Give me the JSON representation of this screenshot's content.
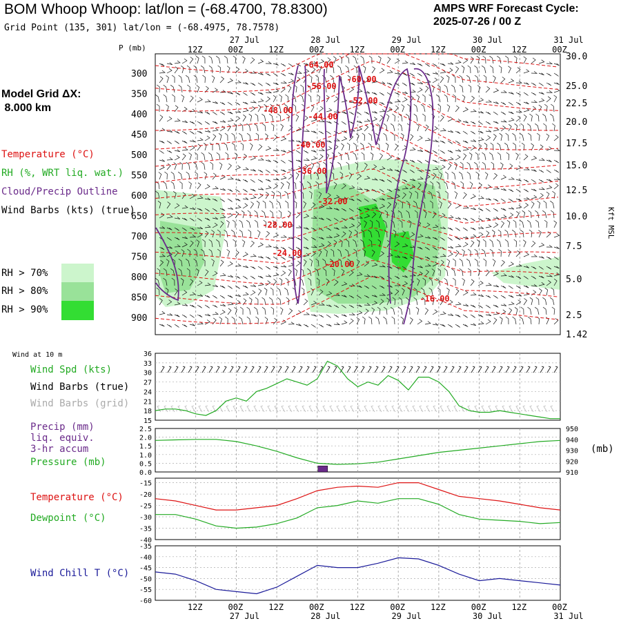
{
  "header": {
    "title": "BOM Whoop Whoop:  lat/lon = (-68.4700, 78.8300)",
    "subtitle": "Grid Point (135, 301) lat/lon = (-68.4975, 78.7578)",
    "cycle_line1": "AMPS WRF Forecast Cycle:",
    "cycle_line2": "2025-07-26 / 00  Z",
    "grid_label1": "Model Grid ΔX:",
    "grid_label2": " 8.000 km"
  },
  "colors": {
    "temperature": "#dd1111",
    "rh": "#22aa22",
    "cloud": "#6a2a8a",
    "wind": "#000000",
    "wind_grid": "#aaaaaa",
    "precip": "#6a2a8a",
    "pressure": "#22aa22",
    "dewpoint": "#22aa22",
    "windchill": "#1a1a99",
    "rh70": "#ccf5cc",
    "rh80": "#99e299",
    "rh90": "#33dd33"
  },
  "time_axis": {
    "top_labels": [
      "12Z",
      "00Z",
      "12Z",
      "00Z",
      "12Z",
      "00Z",
      "12Z",
      "00Z",
      "12Z",
      "00Z"
    ],
    "top_dates": [
      "27 Jul",
      "28 Jul",
      "29 Jul",
      "30 Jul",
      "31 Jul"
    ],
    "bottom_labels": [
      "12Z",
      "00Z",
      "12Z",
      "00Z",
      "12Z",
      "00Z",
      "12Z",
      "00Z",
      "12Z",
      "00Z"
    ],
    "bottom_dates": [
      "27 Jul",
      "28 Jul",
      "29 Jul",
      "30 Jul",
      "31 Jul"
    ]
  },
  "legend": {
    "temperature": "Temperature (°C)",
    "rh": "RH (%, WRT liq. wat.)",
    "cloud": "Cloud/Precip Outline",
    "wind": "Wind Barbs (kts) (true)",
    "rh70": "RH > 70%",
    "rh80": "RH > 80%",
    "rh90": "RH > 90%"
  },
  "panel_labels": {
    "wind10": "Wind at 10 m",
    "wind_spd": "Wind Spd (kts)",
    "wind_barbs_true": "Wind Barbs (true)",
    "wind_barbs_grid": "Wind Barbs (grid)",
    "precip1": "Precip (mm)",
    "precip2": "liq. equiv.",
    "precip3": "3-hr accum",
    "pressure": "Pressure (mb)",
    "pressure_unit": "(mb)",
    "temperature": "Temperature (°C)",
    "dewpoint": "Dewpoint (°C)",
    "windchill": "Wind Chill T (°C)"
  },
  "chart_data": [
    {
      "type": "contour",
      "panel": "cross-section",
      "ylabel_left": "P (mb)",
      "ylabel_right": "Kft MSL",
      "pressure_ticks": [
        "300",
        "350",
        "400",
        "450",
        "500",
        "550",
        "600",
        "650",
        "700",
        "750",
        "800",
        "850",
        "900"
      ],
      "height_ticks": [
        "30.0",
        "25.0",
        "22.5",
        "20.0",
        "17.5",
        "15.0",
        "12.5",
        "10.0",
        "7.5",
        "5.0",
        "2.5",
        "1.42"
      ],
      "temperature_labels": [
        "-64.00",
        "-60.00",
        "-56.00",
        "-52.00",
        "-48.00",
        "-44.00",
        "-40.00",
        "-36.00",
        "-32.00",
        "-28.00",
        "-24.00",
        "-20.00",
        "-16.00"
      ]
    },
    {
      "type": "line",
      "panel": "wind-10m",
      "series": [
        {
          "name": "Wind Spd (kts)",
          "x": [
            0,
            3,
            6,
            9,
            12,
            15,
            18,
            21,
            24,
            27,
            30,
            33,
            36,
            39,
            42,
            45,
            48,
            51,
            54,
            57,
            60,
            63,
            66,
            69,
            72,
            75,
            78,
            81,
            84,
            87,
            90,
            93,
            96,
            99,
            102,
            105,
            108,
            111,
            114,
            117,
            120
          ],
          "values": [
            18.0,
            18.5,
            18.5,
            18.0,
            17.0,
            16.5,
            18.0,
            21.0,
            22.0,
            21.0,
            24.0,
            25.0,
            26.5,
            28.0,
            27.0,
            26.0,
            28.0,
            33.5,
            32.0,
            28.0,
            25.5,
            27.0,
            26.0,
            29.0,
            27.5,
            24.5,
            28.5,
            28.5,
            27.0,
            24.0,
            19.5,
            18.0,
            17.5,
            17.5,
            18.0,
            17.5,
            17.0,
            16.5,
            16.0,
            15.5,
            15.5
          ]
        }
      ],
      "yticks": [
        "15",
        "18",
        "21",
        "24",
        "27",
        "30",
        "33",
        "36"
      ],
      "ylim": [
        15,
        36
      ]
    },
    {
      "type": "line",
      "panel": "precip-pressure",
      "series": [
        {
          "name": "Pressure (mb)",
          "x": [
            0,
            6,
            12,
            18,
            24,
            30,
            36,
            42,
            48,
            54,
            60,
            66,
            72,
            78,
            84,
            90,
            96,
            102,
            108,
            114,
            120
          ],
          "values": [
            939,
            939.5,
            940,
            940,
            938,
            934,
            929,
            923,
            918,
            917,
            917.5,
            919,
            922,
            925,
            928,
            930,
            932,
            934,
            936,
            938,
            939
          ]
        },
        {
          "name": "Precip (mm)",
          "x": [
            48
          ],
          "values": [
            0.35
          ]
        }
      ],
      "yticks_left": [
        "0.0",
        "0.5",
        "1.0",
        "1.5",
        "2.0",
        "2.5"
      ],
      "yticks_right": [
        "910",
        "920",
        "930",
        "940",
        "950"
      ],
      "ylim_left": [
        0,
        2.5
      ],
      "ylim_right": [
        910,
        950
      ]
    },
    {
      "type": "line",
      "panel": "temp-dewpoint",
      "series": [
        {
          "name": "Temperature (°C)",
          "x": [
            0,
            6,
            12,
            18,
            24,
            30,
            36,
            42,
            48,
            54,
            60,
            66,
            72,
            78,
            84,
            90,
            96,
            102,
            108,
            114,
            120
          ],
          "values": [
            -22,
            -23,
            -25,
            -27,
            -27,
            -26,
            -25,
            -22,
            -18.5,
            -17,
            -16.5,
            -17,
            -15,
            -15,
            -18,
            -21,
            -22,
            -23,
            -24.5,
            -26,
            -27
          ]
        },
        {
          "name": "Dewpoint (°C)",
          "x": [
            0,
            6,
            12,
            18,
            24,
            30,
            36,
            42,
            48,
            54,
            60,
            66,
            72,
            78,
            84,
            90,
            96,
            102,
            108,
            114,
            120
          ],
          "values": [
            -29,
            -29,
            -31,
            -34,
            -35,
            -34.5,
            -33,
            -30.5,
            -26,
            -25,
            -23,
            -24,
            -22,
            -22,
            -24.5,
            -29,
            -31,
            -31.5,
            -32,
            -33,
            -32.5
          ]
        }
      ],
      "yticks": [
        "-40",
        "-35",
        "-30",
        "-25",
        "-20",
        "-15"
      ],
      "ylim": [
        -40,
        -13
      ]
    },
    {
      "type": "line",
      "panel": "wind-chill",
      "series": [
        {
          "name": "Wind Chill T (°C)",
          "x": [
            0,
            6,
            12,
            18,
            24,
            30,
            36,
            42,
            48,
            54,
            60,
            66,
            72,
            78,
            84,
            90,
            96,
            102,
            108,
            114,
            120
          ],
          "values": [
            -47,
            -48,
            -51,
            -55,
            -56,
            -57,
            -54,
            -49,
            -44,
            -45,
            -45,
            -43,
            -40.5,
            -41,
            -44,
            -48,
            -51,
            -50,
            -51,
            -52,
            -53
          ]
        }
      ],
      "yticks": [
        "-60",
        "-55",
        "-50",
        "-45",
        "-40",
        "-35"
      ],
      "ylim": [
        -60,
        -35
      ]
    }
  ]
}
